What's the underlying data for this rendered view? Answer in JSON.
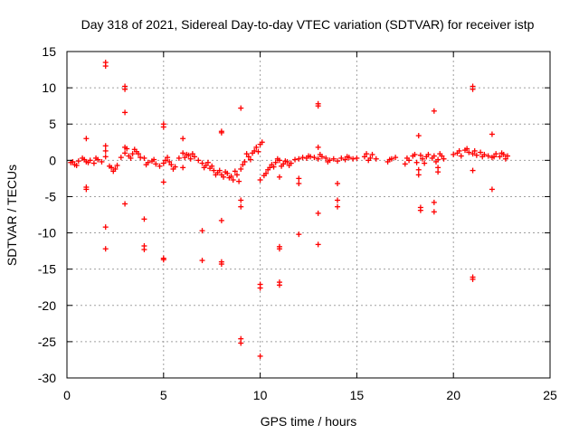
{
  "chart_data": {
    "type": "scatter",
    "title": "Day 318 of 2021, Sidereal Day-to-day VTEC variation (SDTVAR) for receiver istp",
    "xlabel": "GPS time / hours",
    "ylabel": "SDTVAR / TECUs",
    "xlim": [
      0,
      25
    ],
    "ylim": [
      -30,
      15
    ],
    "xticks": [
      0,
      5,
      10,
      15,
      20,
      25
    ],
    "xtick_labels": [
      "0",
      "5",
      "10",
      "15",
      "20",
      "25"
    ],
    "yticks": [
      15,
      10,
      5,
      0,
      -5,
      -10,
      -15,
      -20,
      -25,
      -30
    ],
    "ytick_labels": [
      "15",
      "10",
      "5",
      "0",
      "-5",
      "-10",
      "-15",
      "-20",
      "-25",
      "-30"
    ],
    "grid": true,
    "marker": "plus",
    "marker_color": "#ff0000",
    "series": [
      {
        "name": "SDTVAR",
        "points": [
          [
            0.2,
            -0.3
          ],
          [
            0.4,
            -0.6
          ],
          [
            0.6,
            -0.1
          ],
          [
            0.8,
            0.3
          ],
          [
            1.0,
            -0.2
          ],
          [
            1.2,
            0.0
          ],
          [
            1.4,
            -0.4
          ],
          [
            1.6,
            0.1
          ],
          [
            1.8,
            -0.2
          ],
          [
            2.0,
            0.5
          ],
          [
            2.2,
            -0.8
          ],
          [
            2.4,
            -1.5
          ],
          [
            2.6,
            -0.7
          ],
          [
            2.8,
            0.4
          ],
          [
            3.0,
            1.0
          ],
          [
            3.2,
            0.6
          ],
          [
            3.4,
            0.9
          ],
          [
            3.6,
            1.2
          ],
          [
            3.8,
            0.4
          ],
          [
            4.0,
            0.3
          ],
          [
            4.2,
            -0.3
          ],
          [
            4.4,
            -0.1
          ],
          [
            4.6,
            -0.5
          ],
          [
            4.8,
            -0.8
          ],
          [
            5.0,
            -0.4
          ],
          [
            5.2,
            0.4
          ],
          [
            5.4,
            -0.6
          ],
          [
            5.6,
            -0.9
          ],
          [
            5.8,
            0.3
          ],
          [
            6.0,
            1.0
          ],
          [
            6.2,
            0.8
          ],
          [
            6.4,
            0.2
          ],
          [
            6.6,
            0.5
          ],
          [
            6.8,
            0.0
          ],
          [
            7.0,
            -0.4
          ],
          [
            7.2,
            -0.7
          ],
          [
            7.4,
            -1.1
          ],
          [
            7.6,
            -1.4
          ],
          [
            7.8,
            -1.7
          ],
          [
            8.0,
            -2.0
          ],
          [
            8.2,
            -1.6
          ],
          [
            8.4,
            -2.4
          ],
          [
            8.6,
            -2.7
          ],
          [
            8.8,
            -2.0
          ],
          [
            9.0,
            -1.2
          ],
          [
            9.2,
            -0.2
          ],
          [
            9.4,
            0.5
          ],
          [
            9.6,
            1.0
          ],
          [
            9.8,
            1.8
          ],
          [
            10.0,
            2.2
          ],
          [
            10.2,
            -2.1
          ],
          [
            10.4,
            -1.3
          ],
          [
            10.6,
            -0.6
          ],
          [
            10.8,
            -0.3
          ],
          [
            11.0,
            0.0
          ],
          [
            11.2,
            -0.5
          ],
          [
            11.4,
            -0.2
          ],
          [
            11.6,
            -0.4
          ],
          [
            11.8,
            0.1
          ],
          [
            12.0,
            0.2
          ],
          [
            12.2,
            0.4
          ],
          [
            12.4,
            0.3
          ],
          [
            12.6,
            0.5
          ],
          [
            12.8,
            0.4
          ],
          [
            13.0,
            0.2
          ],
          [
            13.2,
            0.5
          ],
          [
            13.4,
            0.3
          ],
          [
            13.6,
            0.0
          ],
          [
            13.8,
            0.2
          ],
          [
            14.0,
            -0.1
          ],
          [
            14.2,
            0.3
          ],
          [
            14.4,
            0.1
          ],
          [
            14.6,
            0.4
          ],
          [
            14.8,
            0.2
          ],
          [
            15.0,
            0.3
          ],
          [
            15.4,
            0.5
          ],
          [
            15.6,
            0.0
          ],
          [
            15.8,
            0.8
          ],
          [
            16.0,
            0.2
          ],
          [
            16.6,
            -0.2
          ],
          [
            16.8,
            0.2
          ],
          [
            17.0,
            0.4
          ],
          [
            17.5,
            -0.5
          ],
          [
            17.7,
            0.0
          ],
          [
            17.9,
            0.6
          ],
          [
            18.1,
            -0.3
          ],
          [
            18.3,
            0.7
          ],
          [
            18.5,
            -0.4
          ],
          [
            18.7,
            0.8
          ],
          [
            18.9,
            0.3
          ],
          [
            19.1,
            -0.2
          ],
          [
            19.3,
            0.9
          ],
          [
            19.5,
            0.2
          ],
          [
            20.0,
            0.8
          ],
          [
            20.2,
            1.0
          ],
          [
            20.4,
            0.6
          ],
          [
            20.6,
            1.4
          ],
          [
            20.8,
            1.1
          ],
          [
            21.0,
            0.9
          ],
          [
            21.2,
            0.7
          ],
          [
            21.4,
            1.1
          ],
          [
            21.6,
            0.8
          ],
          [
            21.8,
            0.6
          ],
          [
            22.0,
            0.4
          ],
          [
            22.2,
            0.9
          ],
          [
            22.4,
            0.5
          ],
          [
            22.6,
            0.8
          ],
          [
            22.8,
            0.6
          ],
          [
            0.3,
            -0.2
          ],
          [
            0.5,
            -0.7
          ],
          [
            0.9,
            0.1
          ],
          [
            1.1,
            -0.3
          ],
          [
            1.5,
            0.3
          ],
          [
            2.3,
            -1.0
          ],
          [
            2.5,
            -1.2
          ],
          [
            3.1,
            1.6
          ],
          [
            3.3,
            0.3
          ],
          [
            3.5,
            1.5
          ],
          [
            3.7,
            0.9
          ],
          [
            4.1,
            -0.6
          ],
          [
            4.5,
            0.1
          ],
          [
            5.1,
            0.0
          ],
          [
            5.3,
            -0.2
          ],
          [
            5.5,
            -1.2
          ],
          [
            6.1,
            0.4
          ],
          [
            6.3,
            0.7
          ],
          [
            6.5,
            0.9
          ],
          [
            7.1,
            -1.0
          ],
          [
            7.3,
            -0.3
          ],
          [
            7.5,
            -0.8
          ],
          [
            7.7,
            -2.0
          ],
          [
            7.9,
            -1.4
          ],
          [
            8.1,
            -2.3
          ],
          [
            8.3,
            -1.8
          ],
          [
            8.5,
            -2.2
          ],
          [
            8.7,
            -1.5
          ],
          [
            8.9,
            -2.9
          ],
          [
            9.1,
            -0.6
          ],
          [
            9.3,
            0.9
          ],
          [
            9.5,
            0.1
          ],
          [
            9.7,
            1.3
          ],
          [
            9.9,
            1.2
          ],
          [
            10.1,
            2.5
          ],
          [
            10.3,
            -1.8
          ],
          [
            10.5,
            -1.0
          ],
          [
            10.7,
            -0.9
          ],
          [
            10.9,
            0.2
          ],
          [
            11.1,
            -0.8
          ],
          [
            11.3,
            -0.1
          ],
          [
            11.5,
            -0.7
          ],
          [
            12.5,
            0.6
          ],
          [
            13.1,
            0.8
          ],
          [
            13.5,
            -0.2
          ],
          [
            14.5,
            0.5
          ],
          [
            15.5,
            0.9
          ],
          [
            15.7,
            0.3
          ],
          [
            16.7,
            0.1
          ],
          [
            17.6,
            0.3
          ],
          [
            18.0,
            0.8
          ],
          [
            18.4,
            0.2
          ],
          [
            18.6,
            0.5
          ],
          [
            19.0,
            0.6
          ],
          [
            19.2,
            0.1
          ],
          [
            19.4,
            0.6
          ],
          [
            20.3,
            1.3
          ],
          [
            20.7,
            1.6
          ],
          [
            21.1,
            1.3
          ],
          [
            21.5,
            0.5
          ],
          [
            22.1,
            0.5
          ],
          [
            22.5,
            1.0
          ],
          [
            22.7,
            0.2
          ],
          [
            2.0,
            13.5
          ],
          [
            2.0,
            13.0
          ],
          [
            3.0,
            10.2
          ],
          [
            3.0,
            9.8
          ],
          [
            3.0,
            6.6
          ],
          [
            3.0,
            1.8
          ],
          [
            2.0,
            2.0
          ],
          [
            2.0,
            1.3
          ],
          [
            1.0,
            3.0
          ],
          [
            5.0,
            5.0
          ],
          [
            5.0,
            4.6
          ],
          [
            6.0,
            3.0
          ],
          [
            8.0,
            4.0
          ],
          [
            8.0,
            3.8
          ],
          [
            9.0,
            7.2
          ],
          [
            13.0,
            7.8
          ],
          [
            13.0,
            7.5
          ],
          [
            13.0,
            1.8
          ],
          [
            18.2,
            3.4
          ],
          [
            19.0,
            6.8
          ],
          [
            21.0,
            10.2
          ],
          [
            21.0,
            9.8
          ],
          [
            22.0,
            3.6
          ],
          [
            12.0,
            -2.5
          ],
          [
            12.0,
            -3.2
          ],
          [
            11.0,
            -2.3
          ],
          [
            14.0,
            -3.2
          ],
          [
            14.0,
            -5.5
          ],
          [
            14.0,
            -6.4
          ],
          [
            1.0,
            -3.7
          ],
          [
            1.0,
            -4.0
          ],
          [
            3.0,
            -6.0
          ],
          [
            2.0,
            -9.2
          ],
          [
            2.0,
            -12.2
          ],
          [
            4.0,
            -8.1
          ],
          [
            4.0,
            -11.8
          ],
          [
            4.0,
            -12.3
          ],
          [
            5.0,
            -3.0
          ],
          [
            5.0,
            -13.5
          ],
          [
            5.0,
            -13.7
          ],
          [
            6.0,
            -1.0
          ],
          [
            7.0,
            -9.7
          ],
          [
            7.0,
            -13.8
          ],
          [
            8.0,
            -8.3
          ],
          [
            8.0,
            -14.0
          ],
          [
            8.0,
            -14.3
          ],
          [
            9.0,
            -5.5
          ],
          [
            9.0,
            -6.4
          ],
          [
            9.0,
            -24.6
          ],
          [
            9.0,
            -25.2
          ],
          [
            10.0,
            -17.1
          ],
          [
            10.0,
            -17.6
          ],
          [
            10.0,
            -27.0
          ],
          [
            11.0,
            -11.9
          ],
          [
            11.0,
            -12.2
          ],
          [
            11.0,
            -16.8
          ],
          [
            11.0,
            -17.2
          ],
          [
            12.0,
            -10.2
          ],
          [
            13.0,
            -7.3
          ],
          [
            13.0,
            -11.6
          ],
          [
            18.2,
            -1.3
          ],
          [
            18.2,
            -2.0
          ],
          [
            18.3,
            -6.5
          ],
          [
            18.3,
            -6.9
          ],
          [
            19.0,
            -5.8
          ],
          [
            19.0,
            -7.1
          ],
          [
            19.2,
            -1.0
          ],
          [
            19.2,
            -1.6
          ],
          [
            21.0,
            -1.4
          ],
          [
            21.0,
            -16.1
          ],
          [
            21.0,
            -16.4
          ],
          [
            22.0,
            -4.0
          ],
          [
            10.0,
            -2.7
          ]
        ]
      }
    ]
  }
}
